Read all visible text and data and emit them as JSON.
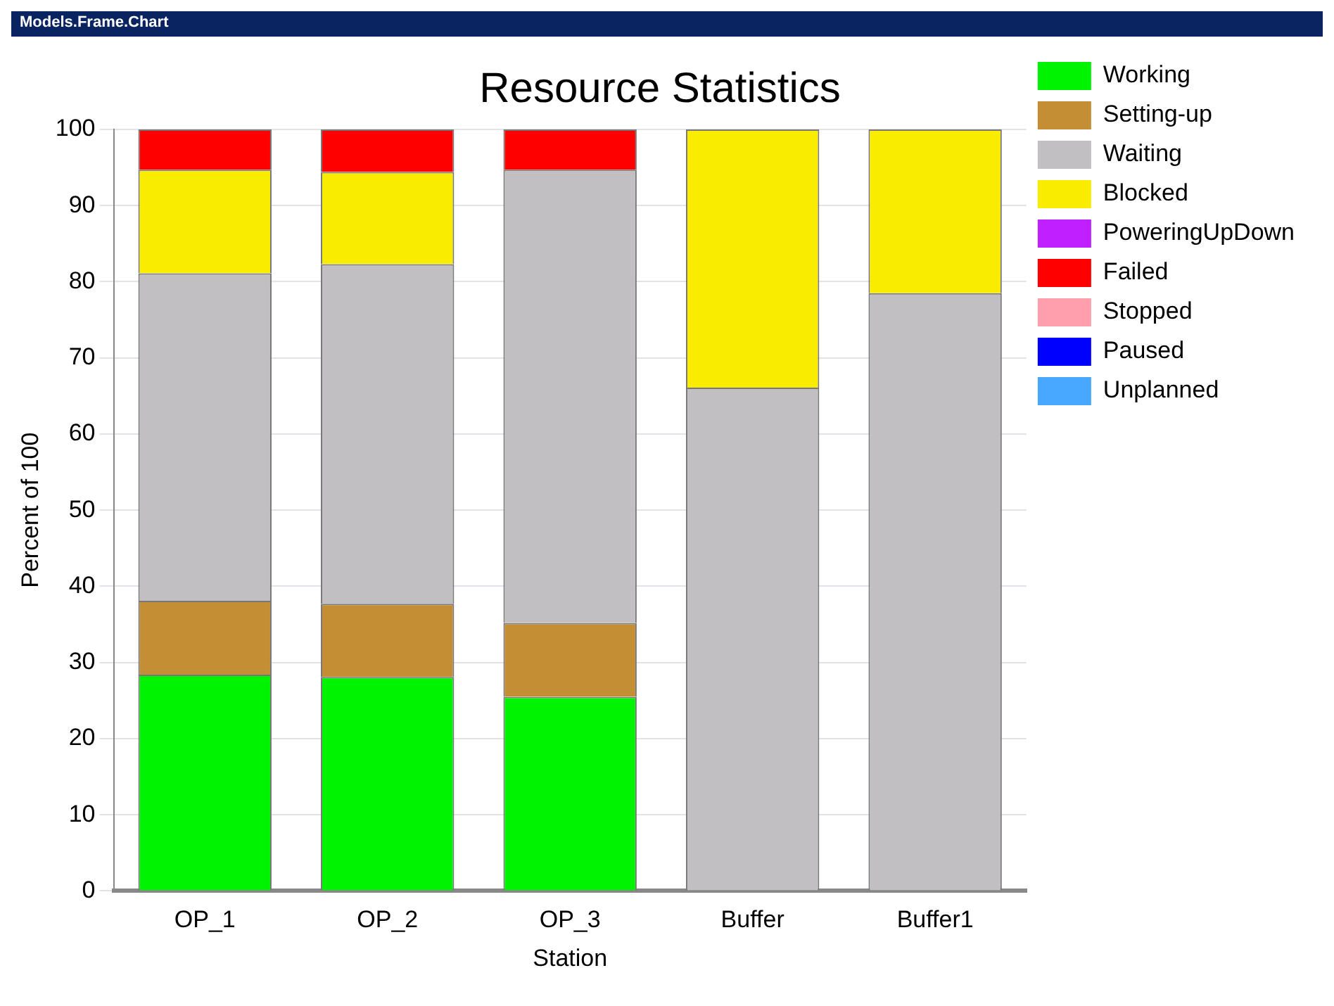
{
  "chart_data": {
    "type": "bar",
    "title": "Resource Statistics",
    "xlabel": "Station",
    "ylabel": "Percent of 100",
    "annotations": [
      "Models.Frame.Chart"
    ],
    "categories": [
      "OP_1",
      "OP_2",
      "OP_3",
      "Buffer",
      "Buffer1"
    ],
    "stacked": true,
    "ylim": [
      0,
      100
    ],
    "yticks": [
      0,
      10,
      20,
      30,
      40,
      50,
      60,
      70,
      80,
      90,
      100
    ],
    "grid": "y",
    "legend": "right",
    "series": [
      {
        "name": "Working",
        "color": "#00f300",
        "values": [
          28.4,
          28.1,
          25.5,
          0,
          0
        ]
      },
      {
        "name": "Setting-up",
        "color": "#c48e35",
        "values": [
          9.7,
          9.6,
          9.7,
          0,
          0
        ]
      },
      {
        "name": "Waiting",
        "color": "#c1bfc2",
        "values": [
          43,
          44.6,
          59.5,
          66.1,
          78.5
        ]
      },
      {
        "name": "Blocked",
        "color": "#f9ec00",
        "values": [
          13.6,
          12.1,
          0,
          33.9,
          21.5
        ]
      },
      {
        "name": "PoweringUpDown",
        "color": "#c020ff",
        "values": [
          0,
          0,
          0,
          0,
          0
        ]
      },
      {
        "name": "Failed",
        "color": "#ff0000",
        "values": [
          5.3,
          5.6,
          5.3,
          0,
          0
        ]
      },
      {
        "name": "Stopped",
        "color": "#ff9fae",
        "values": [
          0,
          0,
          0,
          0,
          0
        ]
      },
      {
        "name": "Paused",
        "color": "#0000ff",
        "values": [
          0,
          0,
          0,
          0,
          0
        ]
      },
      {
        "name": "Unplanned",
        "color": "#48a8ff",
        "values": [
          0,
          0,
          0,
          0,
          0
        ]
      }
    ]
  }
}
